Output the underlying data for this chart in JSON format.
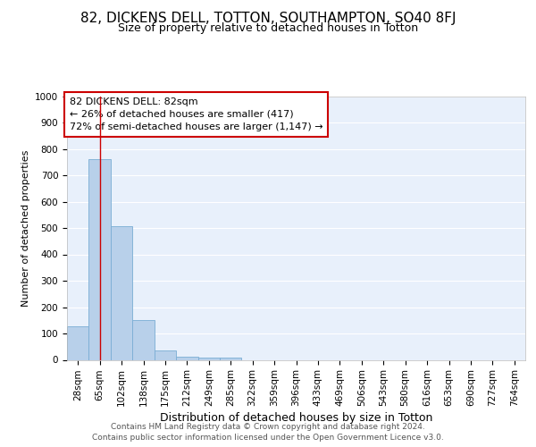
{
  "title_line1": "82, DICKENS DELL, TOTTON, SOUTHAMPTON, SO40 8FJ",
  "title_line2": "Size of property relative to detached houses in Totton",
  "xlabel": "Distribution of detached houses by size in Totton",
  "ylabel": "Number of detached properties",
  "bar_labels": [
    "28sqm",
    "65sqm",
    "102sqm",
    "138sqm",
    "175sqm",
    "212sqm",
    "249sqm",
    "285sqm",
    "322sqm",
    "359sqm",
    "396sqm",
    "433sqm",
    "469sqm",
    "506sqm",
    "543sqm",
    "580sqm",
    "616sqm",
    "653sqm",
    "690sqm",
    "727sqm",
    "764sqm"
  ],
  "bar_values": [
    128,
    762,
    507,
    152,
    37,
    13,
    8,
    7,
    0,
    0,
    0,
    0,
    0,
    0,
    0,
    0,
    0,
    0,
    0,
    0,
    0
  ],
  "bar_color": "#b8d0ea",
  "bar_edge_color": "#7aadd4",
  "background_color": "#e8f0fb",
  "grid_color": "#ffffff",
  "property_line_x": 1,
  "property_line_color": "#cc0000",
  "annotation_text_line1": "82 DICKENS DELL: 82sqm",
  "annotation_text_line2": "← 26% of detached houses are smaller (417)",
  "annotation_text_line3": "72% of semi-detached houses are larger (1,147) →",
  "annotation_box_color": "#ffffff",
  "annotation_box_edge_color": "#cc0000",
  "footer_line1": "Contains HM Land Registry data © Crown copyright and database right 2024.",
  "footer_line2": "Contains public sector information licensed under the Open Government Licence v3.0.",
  "ylim": [
    0,
    1000
  ],
  "yticks": [
    0,
    100,
    200,
    300,
    400,
    500,
    600,
    700,
    800,
    900,
    1000
  ],
  "title_fontsize": 11,
  "subtitle_fontsize": 9,
  "annotation_fontsize": 8,
  "xlabel_fontsize": 9,
  "ylabel_fontsize": 8,
  "tick_fontsize": 7.5,
  "footer_fontsize": 6.5
}
